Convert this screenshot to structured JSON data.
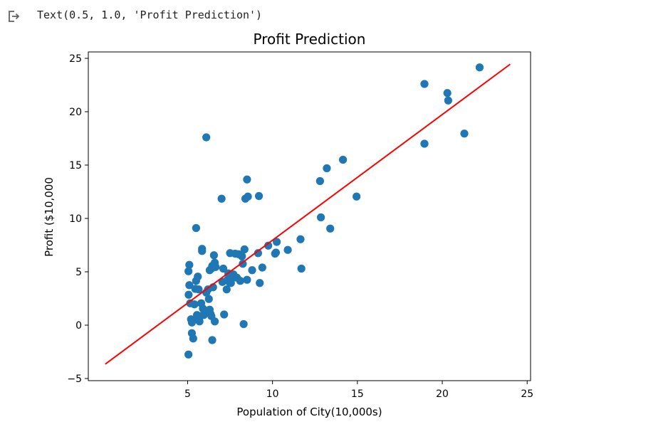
{
  "output": {
    "icon": "output-redirect-icon",
    "text": "Text(0.5, 1.0, 'Profit Prediction')"
  },
  "chart_data": {
    "type": "scatter",
    "title": "Profit Prediction",
    "xlabel": "Population of City(10,000s)",
    "ylabel": "Profit ($10,000",
    "xlim": [
      -0.85,
      25.2
    ],
    "ylim": [
      -5.2,
      25.6
    ],
    "xticks": [
      5,
      10,
      15,
      20,
      25
    ],
    "yticks": [
      -5,
      0,
      5,
      10,
      15,
      20,
      25
    ],
    "grid": false,
    "colors": {
      "points": "#1f77b4",
      "line": "#ff0000"
    },
    "series": [
      {
        "kind": "scatter",
        "points": [
          [
            5.1,
            5.65
          ],
          [
            5.05,
            5.05
          ],
          [
            5.1,
            3.75
          ],
          [
            5.06,
            2.85
          ],
          [
            5.15,
            2.05
          ],
          [
            5.2,
            0.55
          ],
          [
            5.25,
            0.25
          ],
          [
            5.25,
            -0.75
          ],
          [
            5.33,
            -1.25
          ],
          [
            5.05,
            -2.75
          ],
          [
            5.4,
            1.95
          ],
          [
            5.45,
            3.4
          ],
          [
            5.5,
            4.15
          ],
          [
            5.6,
            4.55
          ],
          [
            5.65,
            3.35
          ],
          [
            5.55,
            0.95
          ],
          [
            5.6,
            0.55
          ],
          [
            5.7,
            0.35
          ],
          [
            5.75,
            0.85
          ],
          [
            5.8,
            2.05
          ],
          [
            5.85,
            6.95
          ],
          [
            5.85,
            7.15
          ],
          [
            5.9,
            1.55
          ],
          [
            5.95,
            0.95
          ],
          [
            6.05,
            1.35
          ],
          [
            6.1,
            3.05
          ],
          [
            6.2,
            3.35
          ],
          [
            6.25,
            2.45
          ],
          [
            6.3,
            1.45
          ],
          [
            6.35,
            1.05
          ],
          [
            6.4,
            5.3
          ],
          [
            6.45,
            5.55
          ],
          [
            6.3,
            5.15
          ],
          [
            6.4,
            0.85
          ],
          [
            6.45,
            -1.4
          ],
          [
            6.5,
            3.55
          ],
          [
            6.55,
            6.55
          ],
          [
            6.6,
            5.85
          ],
          [
            6.65,
            5.45
          ],
          [
            6.6,
            0.35
          ],
          [
            5.5,
            9.1
          ],
          [
            6.1,
            17.6
          ],
          [
            7.0,
            11.85
          ],
          [
            7.05,
            4.05
          ],
          [
            7.1,
            5.3
          ],
          [
            7.15,
            1.0
          ],
          [
            7.3,
            3.35
          ],
          [
            7.35,
            4.25
          ],
          [
            7.4,
            4.85
          ],
          [
            7.45,
            4.05
          ],
          [
            7.5,
            6.75
          ],
          [
            7.55,
            3.95
          ],
          [
            7.6,
            4.35
          ],
          [
            7.7,
            4.75
          ],
          [
            7.8,
            6.7
          ],
          [
            7.9,
            4.45
          ],
          [
            8.0,
            6.65
          ],
          [
            8.1,
            4.15
          ],
          [
            8.2,
            6.45
          ],
          [
            8.25,
            5.75
          ],
          [
            8.3,
            0.1
          ],
          [
            8.35,
            7.1
          ],
          [
            8.4,
            11.85
          ],
          [
            8.5,
            4.25
          ],
          [
            8.5,
            13.65
          ],
          [
            8.55,
            12.05
          ],
          [
            8.8,
            5.15
          ],
          [
            9.15,
            6.75
          ],
          [
            9.2,
            12.1
          ],
          [
            9.25,
            3.95
          ],
          [
            9.4,
            5.4
          ],
          [
            9.75,
            7.45
          ],
          [
            10.15,
            6.7
          ],
          [
            10.2,
            6.8
          ],
          [
            10.25,
            7.8
          ],
          [
            10.9,
            7.05
          ],
          [
            11.65,
            8.05
          ],
          [
            11.7,
            5.3
          ],
          [
            12.8,
            13.5
          ],
          [
            12.85,
            10.1
          ],
          [
            13.2,
            14.7
          ],
          [
            13.4,
            9.05
          ],
          [
            14.15,
            15.5
          ],
          [
            14.95,
            12.05
          ],
          [
            18.95,
            22.6
          ],
          [
            18.95,
            17.0
          ],
          [
            20.3,
            21.75
          ],
          [
            20.35,
            21.05
          ],
          [
            21.3,
            17.95
          ],
          [
            22.2,
            24.15
          ]
        ]
      },
      {
        "kind": "line",
        "points": [
          [
            0.15,
            -3.65
          ],
          [
            24.0,
            24.45
          ]
        ]
      }
    ]
  }
}
